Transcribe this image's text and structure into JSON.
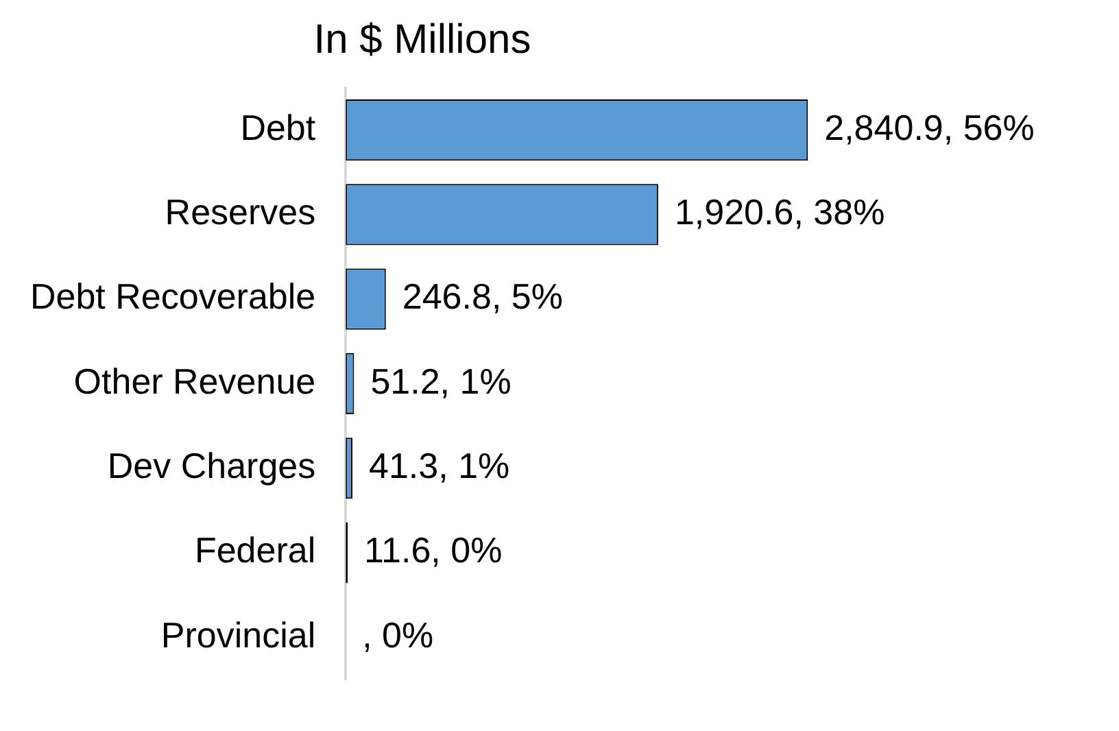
{
  "chart_data": {
    "type": "bar",
    "orientation": "horizontal",
    "title": "In $ Millions",
    "categories": [
      "Debt",
      "Reserves",
      "Debt Recoverable",
      "Other Revenue",
      "Dev Charges",
      "Federal",
      "Provincial"
    ],
    "values": [
      2840.9,
      1920.6,
      246.8,
      51.2,
      41.3,
      11.6,
      null
    ],
    "value_labels": [
      "2,840.9, 56%",
      "1,920.6, 38%",
      "246.8, 5%",
      "51.2, 1%",
      "41.3, 1%",
      "11.6, 0%",
      ", 0%"
    ],
    "colors": [
      "#5b9bd5",
      "#5b9bd5",
      "#5b9bd5",
      "#5b9bd5",
      "#5b9bd5",
      "#000000",
      "#5b9bd5"
    ],
    "grid": false,
    "legend": false,
    "tick_labels": "y"
  }
}
